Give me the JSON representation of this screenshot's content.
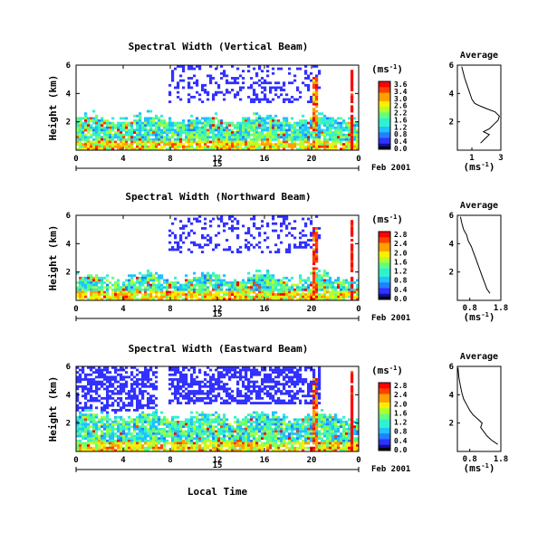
{
  "figure": {
    "xlabel": "Local Time",
    "date_label": "Feb 2001",
    "day_label": "15",
    "ylabel": "Height (km)",
    "avg_title": "Average",
    "cbar_unit": "(ms",
    "cbar_unit_sup": "-1",
    "cbar_unit_close": ")",
    "avg_xlabel": "(ms",
    "avg_xlabel_sup": "-1",
    "avg_xlabel_close": ")"
  },
  "chart_data": [
    {
      "type": "heatmap",
      "title": "Spectral Width (Vertical Beam)",
      "xlabel": "Local Time",
      "ylabel": "Height (km)",
      "xlim": [
        0,
        24
      ],
      "ylim": [
        0,
        6
      ],
      "x_ticks": [
        "0",
        "4",
        "8",
        "12",
        "16",
        "20",
        "0"
      ],
      "y_ticks": [
        "2",
        "4",
        "6"
      ],
      "colorbar": {
        "unit": "ms-1",
        "ticks": [
          "3.6",
          "3.4",
          "3.0",
          "2.6",
          "2.2",
          "1.6",
          "1.2",
          "0.8",
          "0.4",
          "0.0"
        ]
      },
      "average_profile": {
        "title": "Average",
        "xlabel": "ms-1",
        "x_ticks": [
          "1",
          "3"
        ],
        "xlim": [
          0,
          3
        ],
        "y_ticks": [
          "2",
          "4",
          "6"
        ],
        "points": [
          [
            1.6,
            0.5
          ],
          [
            1.8,
            0.7
          ],
          [
            2.0,
            0.9
          ],
          [
            2.2,
            1.1
          ],
          [
            1.8,
            1.3
          ],
          [
            2.2,
            1.5
          ],
          [
            2.4,
            1.7
          ],
          [
            2.6,
            1.9
          ],
          [
            2.8,
            2.1
          ],
          [
            2.9,
            2.4
          ],
          [
            2.6,
            2.7
          ],
          [
            2.1,
            2.9
          ],
          [
            1.6,
            3.1
          ],
          [
            1.2,
            3.3
          ],
          [
            1.0,
            3.6
          ],
          [
            0.9,
            3.9
          ],
          [
            0.8,
            4.2
          ],
          [
            0.7,
            4.5
          ],
          [
            0.6,
            4.8
          ],
          [
            0.5,
            5.1
          ],
          [
            0.4,
            5.5
          ],
          [
            0.3,
            5.9
          ]
        ]
      }
    },
    {
      "type": "heatmap",
      "title": "Spectral Width (Northward Beam)",
      "xlabel": "Local Time",
      "ylabel": "Height (km)",
      "xlim": [
        0,
        24
      ],
      "ylim": [
        0,
        6
      ],
      "x_ticks": [
        "0",
        "4",
        "8",
        "12",
        "16",
        "20",
        "0"
      ],
      "y_ticks": [
        "2",
        "4",
        "6"
      ],
      "colorbar": {
        "unit": "ms-1",
        "ticks": [
          "2.8",
          "2.4",
          "2.0",
          "1.6",
          "1.2",
          "0.8",
          "0.4",
          "0.0"
        ]
      },
      "average_profile": {
        "title": "Average",
        "xlabel": "ms-1",
        "x_ticks": [
          "0.8",
          "1.8"
        ],
        "xlim": [
          0.4,
          1.8
        ],
        "y_ticks": [
          "2",
          "4",
          "6"
        ],
        "points": [
          [
            1.45,
            0.5
          ],
          [
            1.35,
            0.8
          ],
          [
            1.3,
            1.1
          ],
          [
            1.25,
            1.4
          ],
          [
            1.2,
            1.7
          ],
          [
            1.15,
            2.0
          ],
          [
            1.1,
            2.3
          ],
          [
            1.05,
            2.6
          ],
          [
            1.0,
            2.9
          ],
          [
            0.95,
            3.2
          ],
          [
            0.9,
            3.5
          ],
          [
            0.85,
            3.8
          ],
          [
            0.75,
            4.2
          ],
          [
            0.7,
            4.6
          ],
          [
            0.6,
            5.0
          ],
          [
            0.55,
            5.4
          ],
          [
            0.5,
            5.9
          ]
        ]
      }
    },
    {
      "type": "heatmap",
      "title": "Spectral Width (Eastward Beam)",
      "xlabel": "Local Time",
      "ylabel": "Height (km)",
      "xlim": [
        0,
        24
      ],
      "ylim": [
        0,
        6
      ],
      "x_ticks": [
        "0",
        "4",
        "8",
        "12",
        "16",
        "20",
        "0"
      ],
      "y_ticks": [
        "2",
        "4",
        "6"
      ],
      "colorbar": {
        "unit": "ms-1",
        "ticks": [
          "2.8",
          "2.4",
          "2.0",
          "1.6",
          "1.2",
          "0.8",
          "0.4",
          "0.0"
        ]
      },
      "average_profile": {
        "title": "Average",
        "xlabel": "ms-1",
        "x_ticks": [
          "0.8",
          "1.8"
        ],
        "xlim": [
          0.4,
          1.8
        ],
        "y_ticks": [
          "2",
          "4",
          "6"
        ],
        "points": [
          [
            1.7,
            0.5
          ],
          [
            1.5,
            0.8
          ],
          [
            1.35,
            1.1
          ],
          [
            1.25,
            1.4
          ],
          [
            1.15,
            1.7
          ],
          [
            1.2,
            2.0
          ],
          [
            1.05,
            2.3
          ],
          [
            0.9,
            2.6
          ],
          [
            0.8,
            2.9
          ],
          [
            0.7,
            3.3
          ],
          [
            0.6,
            3.7
          ],
          [
            0.55,
            4.1
          ],
          [
            0.5,
            4.6
          ],
          [
            0.45,
            5.2
          ],
          [
            0.42,
            5.9
          ]
        ]
      }
    }
  ]
}
